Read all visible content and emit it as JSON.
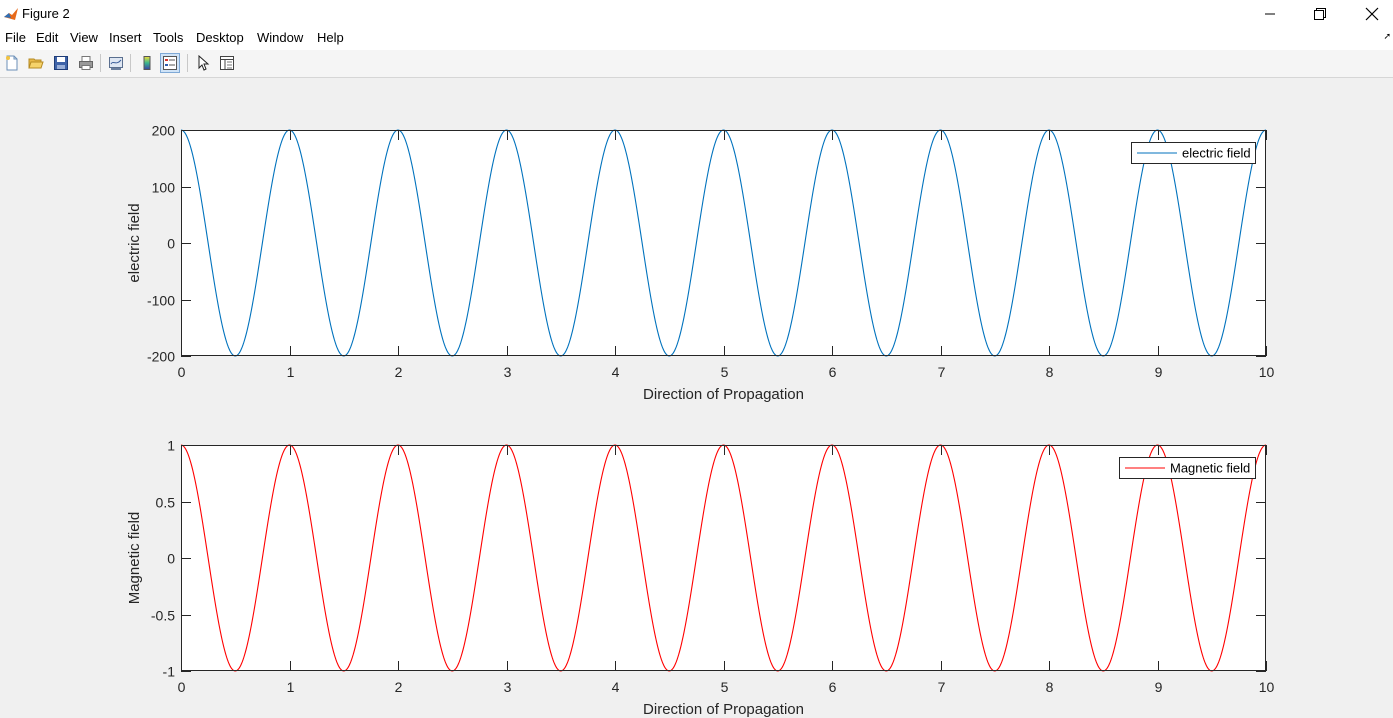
{
  "window": {
    "title": "Figure 2",
    "controls": [
      "minimize",
      "restore",
      "close"
    ]
  },
  "menu": [
    "File",
    "Edit",
    "View",
    "Insert",
    "Tools",
    "Desktop",
    "Window",
    "Help"
  ],
  "toolbar": {
    "buttons": [
      {
        "icon": "new-figure-icon"
      },
      {
        "icon": "open-file-icon"
      },
      {
        "icon": "save-icon"
      },
      {
        "icon": "print-icon"
      },
      {
        "icon": "link-plot-icon"
      },
      {
        "icon": "insert-colorbar-icon"
      },
      {
        "icon": "insert-legend-icon",
        "active": true
      },
      {
        "icon": "edit-plot-arrow-icon"
      },
      {
        "icon": "property-inspector-icon"
      }
    ]
  },
  "colors": {
    "electric": "#0072BD",
    "magnetic": "#FF0000",
    "axes": "#262626",
    "figure_bg": "#f0f0f0"
  },
  "chart_data": [
    {
      "type": "line",
      "xlabel": "Direction of Propagation",
      "ylabel": "electric field",
      "xlim": [
        0,
        10
      ],
      "ylim": [
        -200,
        200
      ],
      "xticks": [
        "0",
        "1",
        "2",
        "3",
        "4",
        "5",
        "6",
        "7",
        "8",
        "9",
        "10"
      ],
      "yticks": [
        "200",
        "100",
        "0",
        "-100",
        "-200"
      ],
      "ytick_values": [
        200,
        100,
        0,
        -100,
        -200
      ],
      "legend_location": "top-right",
      "series": [
        {
          "name": "electric field",
          "color": "#0072BD",
          "function": "cosine",
          "amplitude": 200,
          "period": 1,
          "x_start": 0,
          "x_end": 10
        }
      ]
    },
    {
      "type": "line",
      "xlabel": "Direction of Propagation",
      "ylabel": "Magnetic field",
      "xlim": [
        0,
        10
      ],
      "ylim": [
        -1,
        1
      ],
      "xticks": [
        "0",
        "1",
        "2",
        "3",
        "4",
        "5",
        "6",
        "7",
        "8",
        "9",
        "10"
      ],
      "yticks": [
        "1",
        "0.5",
        "0",
        "-0.5",
        "-1"
      ],
      "ytick_values": [
        1,
        0.5,
        0,
        -0.5,
        -1
      ],
      "legend_location": "top-right",
      "series": [
        {
          "name": "Magnetic field",
          "color": "#FF0000",
          "function": "cosine",
          "amplitude": 1,
          "period": 1,
          "x_start": 0,
          "x_end": 10
        }
      ]
    }
  ]
}
